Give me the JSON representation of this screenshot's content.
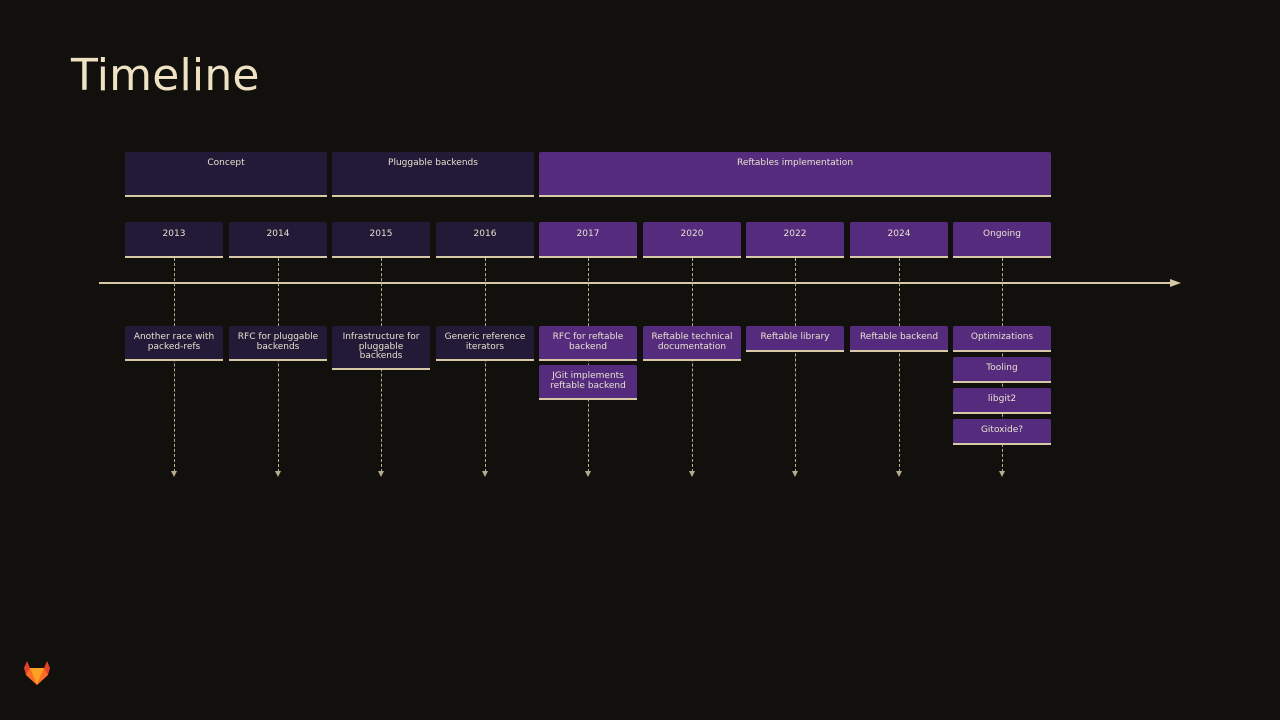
{
  "title": "Timeline",
  "phases": [
    {
      "label": "Concept",
      "style": "dark"
    },
    {
      "label": "Pluggable backends",
      "style": "dark"
    },
    {
      "label": "Reftables implementation",
      "style": "purple"
    }
  ],
  "years": [
    {
      "label": "2013",
      "style": "dark"
    },
    {
      "label": "2014",
      "style": "dark"
    },
    {
      "label": "2015",
      "style": "dark"
    },
    {
      "label": "2016",
      "style": "dark"
    },
    {
      "label": "2017",
      "style": "purple"
    },
    {
      "label": "2020",
      "style": "purple"
    },
    {
      "label": "2022",
      "style": "purple"
    },
    {
      "label": "2024",
      "style": "purple"
    },
    {
      "label": "Ongoing",
      "style": "purple"
    }
  ],
  "events": [
    [
      "Another race with packed-refs"
    ],
    [
      "RFC for pluggable backends"
    ],
    [
      "Infrastructure for pluggable backends"
    ],
    [
      "Generic reference iterators"
    ],
    [
      "RFC for reftable backend",
      "JGit implements reftable backend"
    ],
    [
      "Reftable technical documentation"
    ],
    [
      "Reftable library"
    ],
    [
      "Reftable backend"
    ],
    [
      "Optimizations",
      "Tooling",
      "libgit2",
      "Gitoxide?"
    ]
  ],
  "colors": {
    "dark": "#221a36",
    "purple": "#552c7d",
    "accent": "#d8c9a6"
  },
  "logo_icon": "gitlab-logo-icon"
}
